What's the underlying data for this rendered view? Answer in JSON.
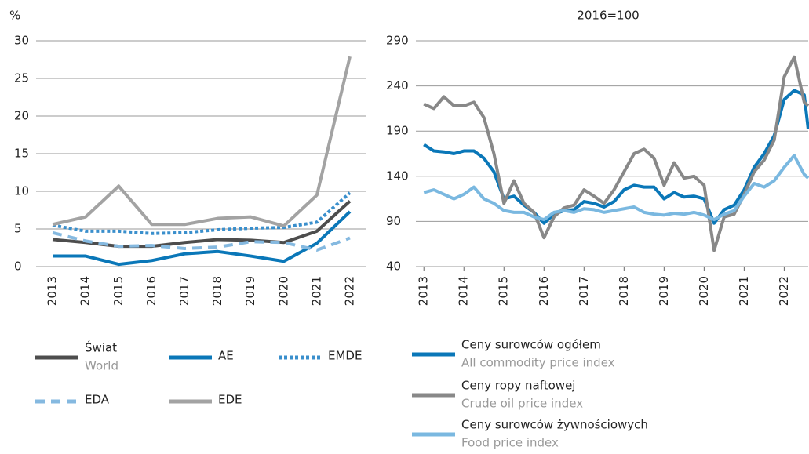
{
  "chart_data": [
    {
      "type": "line",
      "y_unit": "%",
      "categories": [
        "2013",
        "2014",
        "2015",
        "2016",
        "2017",
        "2018",
        "2019",
        "2020",
        "2021",
        "2022"
      ],
      "ylim": [
        0,
        30
      ],
      "yticks": [
        0,
        5,
        10,
        15,
        20,
        25,
        30
      ],
      "grid": true,
      "series": [
        {
          "name": "Świat",
          "name_en": "World",
          "color": "#4d4d4d",
          "style": "solid",
          "values": [
            3.6,
            3.2,
            2.7,
            2.7,
            3.2,
            3.6,
            3.5,
            3.2,
            4.7,
            8.7
          ]
        },
        {
          "name": "AE",
          "color": "#0a77b8",
          "style": "solid",
          "values": [
            1.4,
            1.4,
            0.3,
            0.8,
            1.7,
            2.0,
            1.4,
            0.7,
            3.1,
            7.3
          ]
        },
        {
          "name": "EMDE",
          "color": "#3a8fcc",
          "style": "dotted",
          "values": [
            5.5,
            4.7,
            4.7,
            4.4,
            4.5,
            4.9,
            5.1,
            5.2,
            5.9,
            9.8
          ]
        },
        {
          "name": "EDA",
          "color": "#85b9e0",
          "style": "dashed",
          "values": [
            4.5,
            3.4,
            2.7,
            2.8,
            2.4,
            2.6,
            3.3,
            3.2,
            2.2,
            3.8
          ]
        },
        {
          "name": "EDE",
          "color": "#a3a3a3",
          "style": "solid",
          "values": [
            5.6,
            6.6,
            10.7,
            5.6,
            5.6,
            6.4,
            6.6,
            5.4,
            9.5,
            27.9
          ]
        }
      ]
    },
    {
      "type": "line",
      "subtitle": "2016=100",
      "x": [
        2013,
        2013.25,
        2013.5,
        2013.75,
        2014,
        2014.25,
        2014.5,
        2014.75,
        2015,
        2015.25,
        2015.5,
        2015.75,
        2016,
        2016.25,
        2016.5,
        2016.75,
        2017,
        2017.25,
        2017.5,
        2017.75,
        2018,
        2018.25,
        2018.5,
        2018.75,
        2019,
        2019.25,
        2019.5,
        2019.75,
        2020,
        2020.25,
        2020.5,
        2020.75,
        2021,
        2021.25,
        2021.5,
        2021.75,
        2022,
        2022.25,
        2022.5,
        2022.6
      ],
      "xlim": [
        2012.8,
        2022.6
      ],
      "xticks": [
        2013,
        2014,
        2015,
        2016,
        2017,
        2018,
        2019,
        2020,
        2021,
        2022
      ],
      "ylim": [
        40,
        290
      ],
      "yticks": [
        40,
        90,
        140,
        190,
        240,
        290
      ],
      "grid": true,
      "series": [
        {
          "name": "Ceny surowców ogółem",
          "name_en": "All commodity price index",
          "color": "#0a77b8",
          "values": [
            175,
            168,
            167,
            165,
            168,
            168,
            160,
            145,
            115,
            118,
            108,
            100,
            88,
            98,
            102,
            103,
            112,
            110,
            106,
            112,
            125,
            130,
            128,
            128,
            115,
            122,
            117,
            118,
            115,
            88,
            103,
            108,
            125,
            150,
            165,
            185,
            225,
            235,
            230,
            192
          ]
        },
        {
          "name": "Ceny ropy naftowej",
          "name_en": "Crude oil price index",
          "color": "#888888",
          "values": [
            220,
            215,
            228,
            218,
            218,
            222,
            205,
            165,
            110,
            135,
            110,
            100,
            72,
            95,
            105,
            108,
            125,
            118,
            110,
            125,
            145,
            165,
            170,
            160,
            130,
            155,
            138,
            140,
            130,
            58,
            95,
            98,
            120,
            145,
            158,
            180,
            250,
            272,
            222,
            218
          ]
        },
        {
          "name": "Ceny surowców żywnościowych",
          "name_en": "Food price index",
          "color": "#7ab8e0",
          "values": [
            122,
            125,
            120,
            115,
            120,
            128,
            115,
            110,
            102,
            100,
            100,
            95,
            92,
            100,
            102,
            100,
            104,
            103,
            100,
            102,
            104,
            106,
            100,
            98,
            97,
            99,
            98,
            100,
            97,
            92,
            98,
            102,
            118,
            132,
            128,
            135,
            150,
            163,
            142,
            138
          ]
        }
      ]
    }
  ]
}
